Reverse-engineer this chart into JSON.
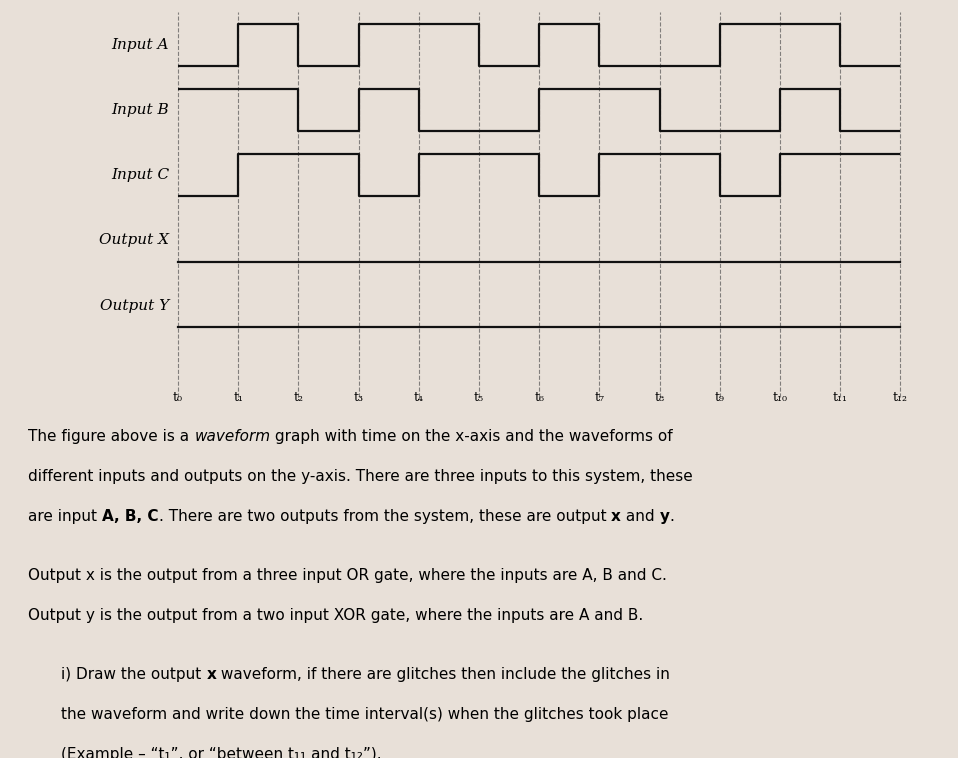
{
  "background_color": "#e8e0d8",
  "wave_bg": "#e8e0d8",
  "text_bg": "#f8f8f8",
  "signal_color": "#111111",
  "grid_color": "#555555",
  "num_intervals": 12,
  "time_labels": [
    "t₀",
    "t₁",
    "t₂",
    "t₃",
    "t₄",
    "t₅",
    "t₆",
    "t₇",
    "t₈",
    "t₉",
    "t₁₀",
    "t₁₁",
    "t₁₂"
  ],
  "row_labels": [
    "Input A",
    "Input B",
    "Input C",
    "Output X",
    "Output Y"
  ],
  "signal_A": [
    0,
    1,
    0,
    1,
    1,
    0,
    1,
    0,
    0,
    1,
    1,
    0
  ],
  "signal_B": [
    1,
    1,
    0,
    1,
    0,
    0,
    1,
    1,
    0,
    0,
    1,
    0
  ],
  "signal_C": [
    0,
    1,
    1,
    0,
    1,
    1,
    0,
    1,
    1,
    0,
    1,
    1
  ],
  "fig_width": 9.58,
  "fig_height": 7.58
}
